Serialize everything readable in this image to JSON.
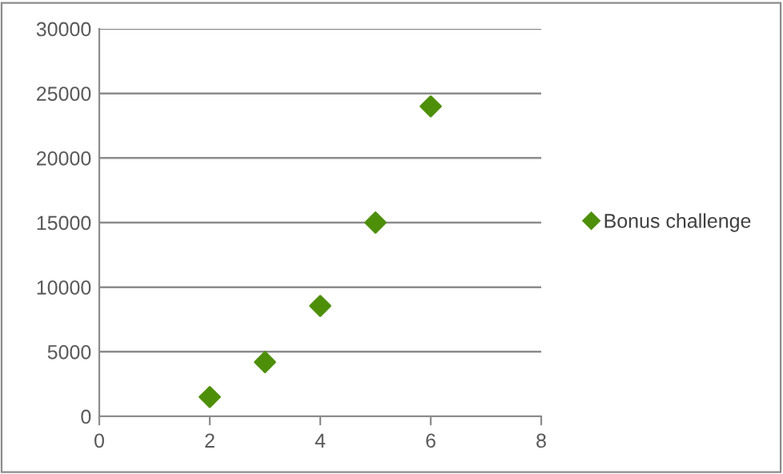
{
  "chart_data": {
    "type": "scatter",
    "x": [
      2,
      3,
      4,
      5,
      6
    ],
    "series": [
      {
        "name": "Bonus challenge",
        "color": "#4e8f0a",
        "values": [
          1500,
          4200,
          8550,
          15000,
          24000
        ]
      }
    ],
    "xlim": [
      0,
      8
    ],
    "xticks": [
      0,
      2,
      4,
      6,
      8
    ],
    "ylim": [
      0,
      30000
    ],
    "yticks": [
      0,
      5000,
      10000,
      15000,
      20000,
      25000,
      30000
    ],
    "grid": "y",
    "legend": "right",
    "marker": "diamond"
  }
}
